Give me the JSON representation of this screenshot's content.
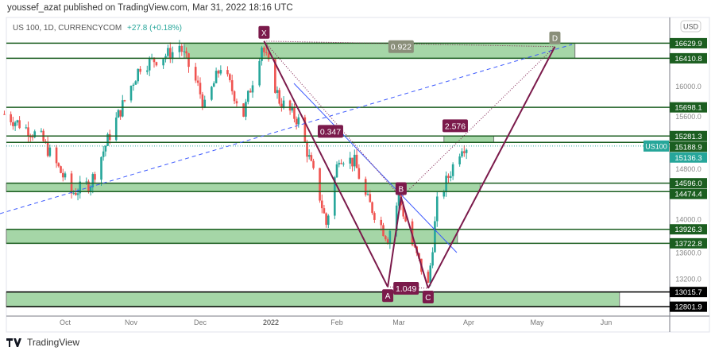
{
  "header": {
    "published": "youssef_azat published on TradingView.com, Mar 31, 2022 18:16 UTC"
  },
  "symbol": {
    "name": "US 100, 1D, CURRENCYCOM",
    "change": "+27.8 (+0.18%)"
  },
  "currency_button": "USD",
  "footer": {
    "brand": "TradingView"
  },
  "colors": {
    "up": "#26a69a",
    "down": "#ef5350",
    "level": "#1b5e20",
    "zone": "#a5d6a7",
    "pattern": "#7b1a4b",
    "trend": "#3d5afe"
  },
  "chart_data": {
    "type": "candlestick",
    "title": "US 100, 1D, CURRENCYCOM",
    "x_ticks": [
      "Oct",
      "Nov",
      "Dec",
      "2022",
      "Feb",
      "Mar",
      "Apr",
      "May",
      "Jun"
    ],
    "y_ticks": [
      "16000.0",
      "15600.0",
      "14800.0",
      "14000.0",
      "13600.0",
      "13200.0"
    ],
    "price_path": [
      {
        "date": "2021-09-03",
        "close": 15600
      },
      {
        "date": "2021-09-20",
        "close": 15250
      },
      {
        "date": "2021-09-30",
        "close": 14700
      },
      {
        "date": "2021-10-04",
        "close": 14450
      },
      {
        "date": "2021-10-13",
        "close": 14600
      },
      {
        "date": "2021-10-22",
        "close": 15300
      },
      {
        "date": "2021-11-05",
        "close": 16300
      },
      {
        "date": "2021-11-19",
        "close": 16500
      },
      {
        "date": "2021-11-22",
        "close": 16600
      },
      {
        "date": "2021-11-30",
        "close": 16000
      },
      {
        "date": "2021-12-03",
        "close": 15700
      },
      {
        "date": "2021-12-10",
        "close": 16300
      },
      {
        "date": "2021-12-20",
        "close": 15600
      },
      {
        "date": "2021-12-28",
        "close": 16600
      },
      {
        "date": "2022-01-05",
        "close": 15800
      },
      {
        "date": "2022-01-14",
        "close": 15500
      },
      {
        "date": "2022-01-24",
        "close": 14400
      },
      {
        "date": "2022-01-27",
        "close": 14000
      },
      {
        "date": "2022-02-02",
        "close": 15000
      },
      {
        "date": "2022-02-09",
        "close": 14900
      },
      {
        "date": "2022-02-14",
        "close": 14400
      },
      {
        "date": "2022-02-24",
        "close": 13800
      },
      {
        "date": "2022-03-01",
        "close": 14400
      },
      {
        "date": "2022-03-07",
        "close": 13700
      },
      {
        "date": "2022-03-14",
        "close": 13100
      },
      {
        "date": "2022-03-18",
        "close": 14300
      },
      {
        "date": "2022-03-25",
        "close": 14850
      },
      {
        "date": "2022-03-29",
        "close": 15150
      },
      {
        "date": "2022-03-31",
        "close": 15136.3
      }
    ],
    "levels": [
      {
        "price": 16629.9,
        "label": "16629.9"
      },
      {
        "price": 16410.8,
        "label": "16410.8"
      },
      {
        "price": 15698.1,
        "label": "15698.1"
      },
      {
        "price": 15281.3,
        "label": "15281.3"
      },
      {
        "price": 15188.9,
        "label": "15188.9"
      },
      {
        "price": 14596.0,
        "label": "14596.0"
      },
      {
        "price": 14474.4,
        "label": "14474.4"
      },
      {
        "price": 13926.3,
        "label": "13926.3"
      },
      {
        "price": 13722.8,
        "label": "13722.8"
      },
      {
        "price": 13015.7,
        "label": "13015.7",
        "dark": true
      },
      {
        "price": 12801.9,
        "label": "12801.9",
        "dark": true
      }
    ],
    "zones": [
      {
        "from": "2021-11-24",
        "to": "2022-05-18",
        "high": 16629.9,
        "low": 16410.8
      },
      {
        "from": "2022-03-21",
        "to": "2022-04-12",
        "high": 15281.3,
        "low": 15188.9
      },
      {
        "from": "2021-09-03",
        "to": "2022-04-06",
        "high": 14596.0,
        "low": 14474.4
      },
      {
        "from": "2021-09-03",
        "to": "2022-03-27",
        "high": 13926.3,
        "low": 13722.8
      },
      {
        "from": "2021-09-03",
        "to": "2022-06-07",
        "high": 13015.7,
        "low": 12801.9
      }
    ],
    "last_price": {
      "symbol": "US100",
      "value": "15136.3"
    },
    "harmonic": {
      "points": [
        {
          "label": "X",
          "date": "2021-12-29",
          "price": 16660
        },
        {
          "label": "A",
          "date": "2022-02-24",
          "price": 13090
        },
        {
          "label": "B",
          "date": "2022-03-02",
          "price": 14390
        },
        {
          "label": "C",
          "date": "2022-03-14",
          "price": 13070
        },
        {
          "label": "D",
          "date": "2022-05-09",
          "price": 16580
        }
      ],
      "ratios": [
        {
          "label": "0.922",
          "date": "2022-03-02",
          "price": 16580
        },
        {
          "label": "0.347",
          "date": "2022-01-29",
          "price": 15350
        },
        {
          "label": "1.049",
          "date": "2022-03-06",
          "price": 13070
        },
        {
          "label": "2.576",
          "date": "2022-03-26",
          "price": 15430
        }
      ]
    }
  }
}
